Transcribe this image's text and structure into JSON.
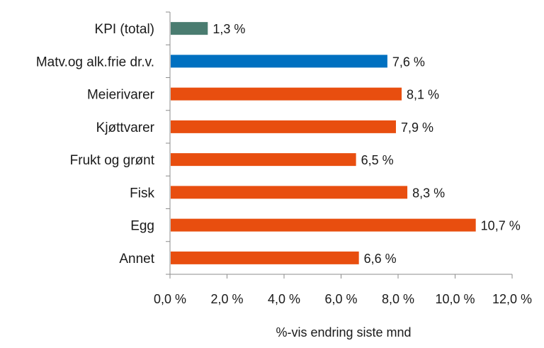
{
  "chart_data": {
    "type": "bar",
    "orientation": "horizontal",
    "categories": [
      "KPI (total)",
      "Matv.og alk.frie dr.v.",
      "Meierivarer",
      "Kjøttvarer",
      "Frukt og grønt",
      "Fisk",
      "Egg",
      "Annet"
    ],
    "values": [
      1.3,
      7.6,
      8.1,
      7.9,
      6.5,
      8.3,
      10.7,
      6.6
    ],
    "data_labels": [
      "1,3 %",
      "7,6 %",
      "8,1 %",
      "7,9 %",
      "6,5 %",
      "8,3 %",
      "10,7 %",
      "6,6 %"
    ],
    "bar_colors": [
      "#4a7c70",
      "#0070c0",
      "#e84e0f",
      "#e84e0f",
      "#e84e0f",
      "#e84e0f",
      "#e84e0f",
      "#e84e0f"
    ],
    "xlim": [
      0,
      12
    ],
    "xticks": [
      0,
      2,
      4,
      6,
      8,
      10,
      12
    ],
    "xtick_labels": [
      "0,0 %",
      "2,0 %",
      "4,0 %",
      "6,0 %",
      "8,0 %",
      "10,0 %",
      "12,0 %"
    ],
    "xlabel": "%-vis endring siste mnd",
    "ylabel": "",
    "title": "",
    "grid": false,
    "legend": "none"
  }
}
